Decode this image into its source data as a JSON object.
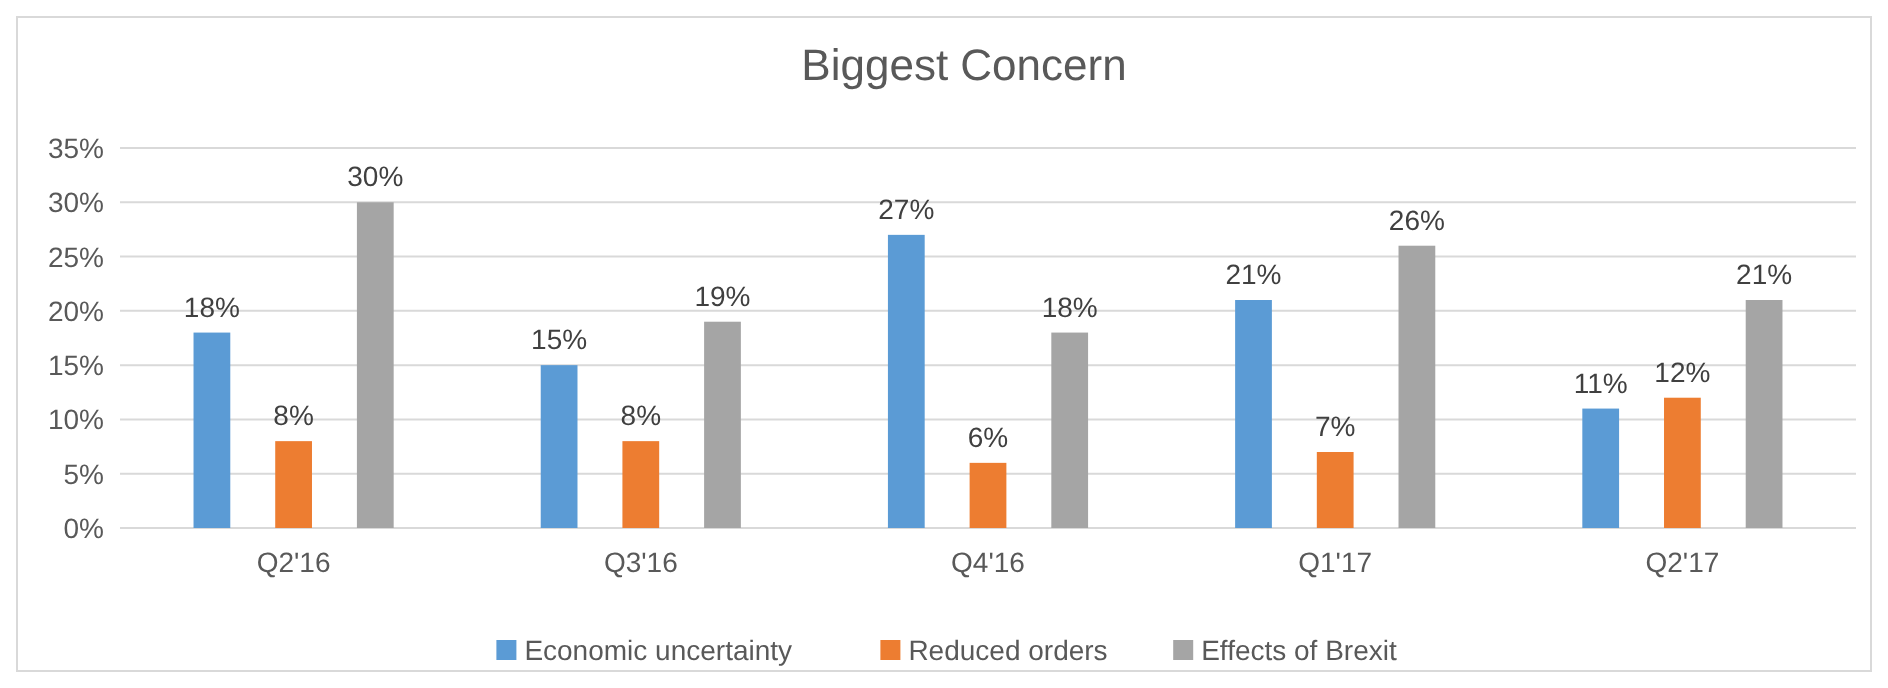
{
  "chart_data": {
    "type": "bar",
    "title": "Biggest Concern",
    "categories": [
      "Q2'16",
      "Q3'16",
      "Q4'16",
      "Q1'17",
      "Q2'17"
    ],
    "series": [
      {
        "name": "Economic uncertainty",
        "color": "#5b9bd5",
        "values": [
          18,
          15,
          27,
          21,
          11
        ],
        "value_labels": [
          "18%",
          "15%",
          "27%",
          "21%",
          "11%"
        ]
      },
      {
        "name": "Reduced orders",
        "color": "#ed7d31",
        "values": [
          8,
          8,
          6,
          7,
          12
        ],
        "value_labels": [
          "8%",
          "8%",
          "6%",
          "7%",
          "12%"
        ]
      },
      {
        "name": "Effects of Brexit",
        "color": "#a5a5a5",
        "values": [
          30,
          19,
          18,
          26,
          21
        ],
        "value_labels": [
          "30%",
          "19%",
          "18%",
          "26%",
          "21%"
        ]
      }
    ],
    "ylim": [
      0,
      35
    ],
    "yticks": [
      {
        "value": 0,
        "label": "0%"
      },
      {
        "value": 5,
        "label": "5%"
      },
      {
        "value": 10,
        "label": "10%"
      },
      {
        "value": 15,
        "label": "15%"
      },
      {
        "value": 20,
        "label": "20%"
      },
      {
        "value": 25,
        "label": "25%"
      },
      {
        "value": 30,
        "label": "30%"
      },
      {
        "value": 35,
        "label": "35%"
      }
    ],
    "grid": "y",
    "legend": "bottom"
  }
}
